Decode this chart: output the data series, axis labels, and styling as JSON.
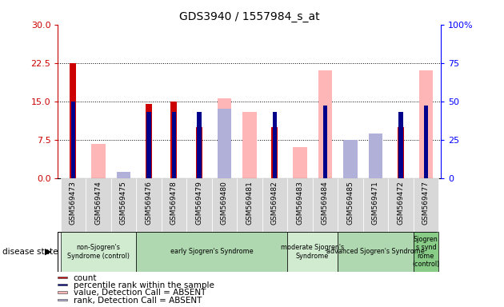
{
  "title": "GDS3940 / 1557984_s_at",
  "samples": [
    "GSM569473",
    "GSM569474",
    "GSM569475",
    "GSM569476",
    "GSM569478",
    "GSM569479",
    "GSM569480",
    "GSM569481",
    "GSM569482",
    "GSM569483",
    "GSM569484",
    "GSM569485",
    "GSM569471",
    "GSM569472",
    "GSM569477"
  ],
  "count_values": [
    22.5,
    0,
    0,
    14.5,
    15.0,
    10.0,
    0,
    0,
    10.0,
    0,
    0,
    0,
    0,
    10.0,
    0
  ],
  "percentile_values": [
    50,
    0,
    0,
    43,
    43,
    43,
    0,
    0,
    43,
    0,
    47,
    0,
    0,
    43,
    47
  ],
  "absent_value_values": [
    0,
    22,
    4,
    0,
    0,
    0,
    52,
    43,
    0,
    20,
    70,
    25,
    23,
    0,
    70
  ],
  "absent_rank_values": [
    0,
    0,
    4,
    0,
    0,
    0,
    45,
    0,
    0,
    0,
    0,
    25,
    29,
    0,
    0
  ],
  "disease_groups": [
    {
      "label": "non-Sjogren's\nSyndrome (control)",
      "start": 0,
      "end": 3,
      "color": "#d0ebd0"
    },
    {
      "label": "early Sjogren's Syndrome",
      "start": 3,
      "end": 9,
      "color": "#b0d8b0"
    },
    {
      "label": "moderate Sjogren's\nSyndrome",
      "start": 9,
      "end": 11,
      "color": "#d0ebd0"
    },
    {
      "label": "advanced Sjogren's Syndrome",
      "start": 11,
      "end": 14,
      "color": "#b0d8b0"
    },
    {
      "label": "Sjogren\ns synd\nrome\n(control)",
      "start": 14,
      "end": 15,
      "color": "#88cc88"
    }
  ],
  "ylim_left": [
    0,
    30
  ],
  "ylim_right": [
    0,
    100
  ],
  "yticks_left": [
    0,
    7.5,
    15,
    22.5,
    30
  ],
  "yticks_right": [
    0,
    25,
    50,
    75,
    100
  ],
  "color_count": "#cc0000",
  "color_percentile": "#00008b",
  "color_absent_value": "#ffb6b6",
  "color_absent_rank": "#b0b0d8",
  "legend_items": [
    {
      "label": "count",
      "color": "#cc0000"
    },
    {
      "label": "percentile rank within the sample",
      "color": "#00008b"
    },
    {
      "label": "value, Detection Call = ABSENT",
      "color": "#ffb6b6"
    },
    {
      "label": "rank, Detection Call = ABSENT",
      "color": "#b0b0d8"
    }
  ],
  "grid_yticks": [
    7.5,
    15,
    22.5
  ]
}
